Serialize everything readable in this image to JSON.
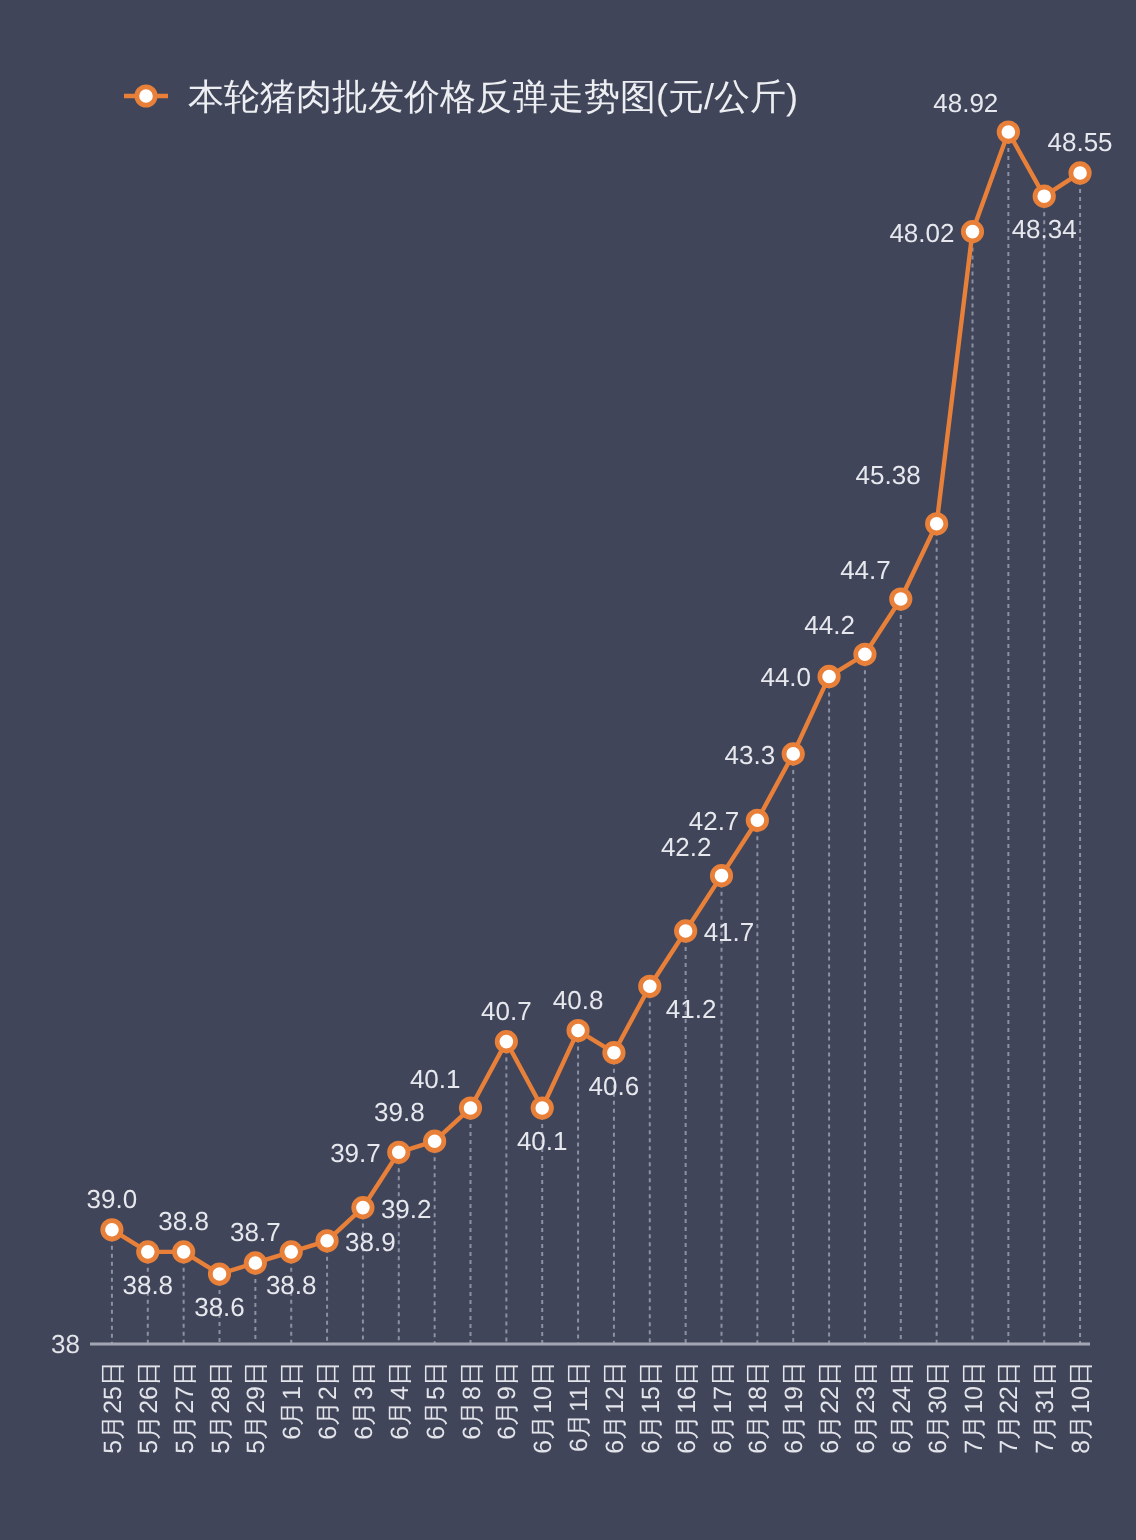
{
  "chart_data": {
    "type": "line",
    "categories": [
      "5月25日",
      "5月26日",
      "5月27日",
      "5月28日",
      "5月29日",
      "6月1日",
      "6月2日",
      "6月3日",
      "6月4日",
      "6月5日",
      "6月8日",
      "6月9日",
      "6月10日",
      "6月11日",
      "6月12日",
      "6月15日",
      "6月16日",
      "6月17日",
      "6月18日",
      "6月19日",
      "6月22日",
      "6月23日",
      "6月24日",
      "6月30日",
      "7月10日",
      "7月22日",
      "7月31日",
      "8月10日"
    ],
    "series": [
      {
        "name": "本轮猪肉批发价格反弹走势图(元/公斤)",
        "color": "#e8803a",
        "values": [
          39.0,
          38.8,
          38.8,
          38.6,
          38.7,
          38.8,
          38.9,
          39.2,
          39.7,
          39.8,
          40.1,
          40.7,
          40.1,
          40.8,
          40.6,
          41.2,
          41.7,
          42.2,
          42.7,
          43.3,
          44.0,
          44.2,
          44.7,
          45.38,
          48.02,
          48.92,
          48.34,
          48.55
        ],
        "value_labels": [
          "39.0",
          "38.8",
          "38.8",
          "38.6",
          "38.7",
          "38.8",
          "38.9",
          "39.2",
          "39.7",
          "39.8",
          "40.1",
          "40.7",
          "40.1",
          "40.8",
          "40.6",
          "41.2",
          "41.7",
          "42.2",
          "42.7",
          "43.3",
          "44.0",
          "44.2",
          "44.7",
          "45.38",
          "48.02",
          "48.92",
          "48.34",
          "48.55"
        ]
      }
    ],
    "annotations": [
      "38"
    ],
    "marker": "circle",
    "line_style": "solid",
    "legend": "top",
    "grid": "x"
  }
}
